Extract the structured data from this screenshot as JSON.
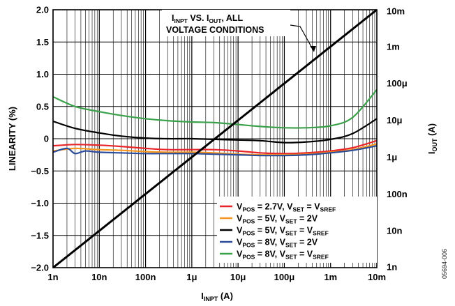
{
  "chart_data": {
    "type": "line",
    "x_scale": "log",
    "xlabel": "I_INPT (A)",
    "ylabel_left": "LINEARITY (%)",
    "ylabel_right": "I_OUT (A)",
    "xlim": [
      "1n",
      "10m"
    ],
    "ylim_left": [
      -2.0,
      2.0
    ],
    "ylim_right": [
      "1n",
      "10m"
    ],
    "grid": true,
    "x_ticks": [
      "1n",
      "10n",
      "100n",
      "1μ",
      "10μ",
      "100μ",
      "1m",
      "10m"
    ],
    "y_ticks_left": [
      "2.0",
      "1.5",
      "1.0",
      "0.5",
      "0",
      "−0.5",
      "−1.0",
      "−1.5",
      "−2.0"
    ],
    "y_ticks_right": [
      "10m",
      "1m",
      "100μ",
      "10μ",
      "1μ",
      "100n",
      "10n",
      "1n"
    ],
    "annotation": [
      "I_INPT VS. I_OUT, ALL",
      "VOLTAGE CONDITIONS"
    ],
    "legend_position": "bottom-right",
    "series": [
      {
        "name": "V_POS = 2.7V, V_SET = V_SREF",
        "color": "#e8262a",
        "x": [
          "1n",
          "3n",
          "10n",
          "30n",
          "100n",
          "300n",
          "1μ",
          "3μ",
          "10μ",
          "30μ",
          "100μ",
          "300μ",
          "1m",
          "3m",
          "10m"
        ],
        "y": [
          -0.11,
          -0.09,
          -0.1,
          -0.12,
          -0.15,
          -0.17,
          -0.17,
          -0.17,
          -0.19,
          -0.22,
          -0.23,
          -0.22,
          -0.19,
          -0.14,
          -0.03
        ]
      },
      {
        "name": "V_POS = 5V, V_SET = 2V",
        "color": "#f7941d",
        "x": [
          "1n",
          "3n",
          "10n",
          "30n",
          "100n",
          "300n",
          "1μ",
          "3μ",
          "10μ",
          "30μ",
          "100μ",
          "300μ",
          "1m",
          "3m",
          "10m"
        ],
        "y": [
          -0.19,
          -0.15,
          -0.17,
          -0.18,
          -0.2,
          -0.21,
          -0.21,
          -0.22,
          -0.24,
          -0.25,
          -0.25,
          -0.24,
          -0.21,
          -0.17,
          -0.08
        ]
      },
      {
        "name": "V_POS = 5V, V_SET = V_SREF",
        "color": "#000000",
        "x": [
          "1n",
          "3n",
          "10n",
          "30n",
          "100n",
          "300n",
          "1μ",
          "3μ",
          "10μ",
          "30μ",
          "100μ",
          "300μ",
          "1m",
          "3m",
          "10m"
        ],
        "y": [
          0.27,
          0.16,
          0.09,
          0.04,
          0.01,
          0.0,
          0.0,
          -0.01,
          -0.02,
          -0.03,
          -0.06,
          -0.05,
          -0.01,
          0.08,
          0.31
        ]
      },
      {
        "name": "V_POS = 8V, V_SET = 2V",
        "color": "#2b4c9b",
        "x": [
          "1n",
          "2n",
          "3n",
          "5n",
          "10n",
          "30n",
          "100n",
          "300n",
          "1μ",
          "3μ",
          "10μ",
          "30μ",
          "100μ",
          "300μ",
          "1m",
          "3m",
          "10m"
        ],
        "y": [
          -0.21,
          -0.15,
          -0.23,
          -0.19,
          -0.21,
          -0.22,
          -0.23,
          -0.23,
          -0.23,
          -0.24,
          -0.25,
          -0.26,
          -0.26,
          -0.25,
          -0.22,
          -0.18,
          -0.11
        ]
      },
      {
        "name": "V_POS = 8V, V_SET = V_SREF",
        "color": "#3aa14a",
        "x": [
          "1n",
          "3n",
          "10n",
          "30n",
          "100n",
          "300n",
          "1μ",
          "3μ",
          "10μ",
          "30μ",
          "100μ",
          "300μ",
          "1m",
          "3m",
          "10m"
        ],
        "y": [
          0.65,
          0.5,
          0.42,
          0.36,
          0.31,
          0.28,
          0.26,
          0.25,
          0.22,
          0.19,
          0.17,
          0.17,
          0.2,
          0.33,
          0.76
        ]
      },
      {
        "name": "I_INPT VS. I_OUT, ALL VOLTAGE CONDITIONS",
        "axis": "right",
        "color": "#000000",
        "x": [
          "1n",
          "10m"
        ],
        "y": [
          "1n",
          "10m"
        ]
      }
    ]
  },
  "figure_id": "05694-006"
}
